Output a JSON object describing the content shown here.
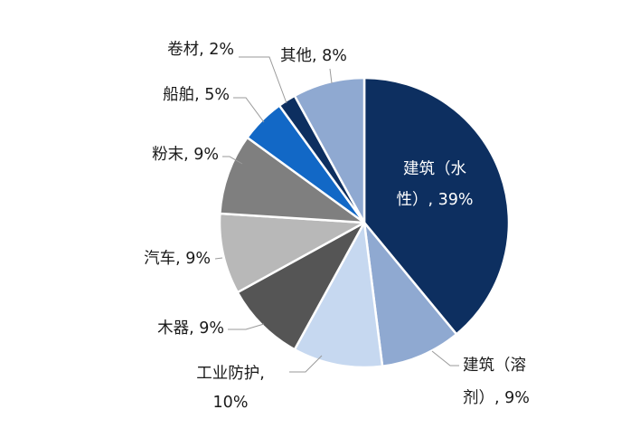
{
  "chart_data": {
    "type": "pie",
    "title": "",
    "slices": [
      {
        "label_lines": [
          "建筑（水",
          "性）, 39%"
        ],
        "value": 39,
        "color": "#0d2f60"
      },
      {
        "label_lines": [
          "建筑（溶",
          "剂）, 9%"
        ],
        "value": 9,
        "color": "#8fa9d1"
      },
      {
        "label_lines": [
          "工业防护,",
          "10%"
        ],
        "value": 10,
        "color": "#c6d8f0"
      },
      {
        "label_lines": [
          "木器, 9%"
        ],
        "value": 9,
        "color": "#555555"
      },
      {
        "label_lines": [
          "汽车, 9%"
        ],
        "value": 9,
        "color": "#b8b8b8"
      },
      {
        "label_lines": [
          "粉末, 9%"
        ],
        "value": 9,
        "color": "#7f7f7f"
      },
      {
        "label_lines": [
          "船舶, 5%"
        ],
        "value": 5,
        "color": "#1268c6"
      },
      {
        "label_lines": [
          "卷材, 2%"
        ],
        "value": 2,
        "color": "#0d2f60"
      },
      {
        "label_lines": [
          "其他, 8%"
        ],
        "value": 8,
        "color": "#8fa9d1"
      }
    ]
  }
}
